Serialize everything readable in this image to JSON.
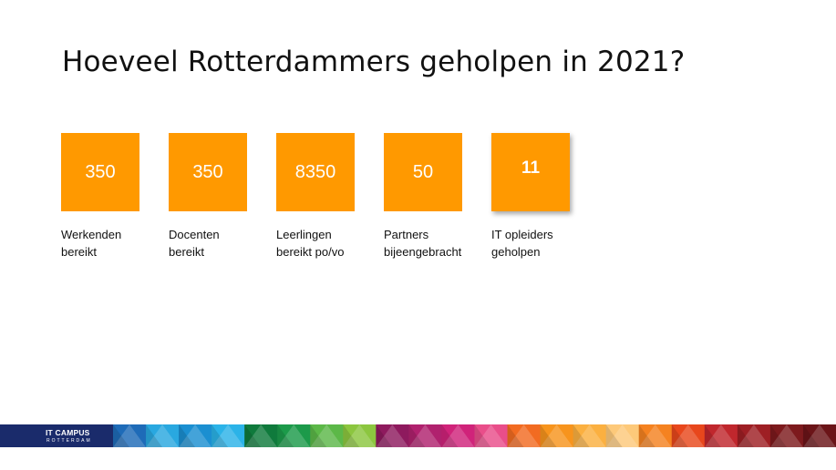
{
  "slide": {
    "title": "Hoeveel Rotterdammers geholpen in 2021?"
  },
  "stats": [
    {
      "value": "350",
      "label": "Werkenden\nbereikt"
    },
    {
      "value": "350",
      "label": "Docenten\nbereikt"
    },
    {
      "value": "8350",
      "label": "Leerlingen\nbereikt po/vo"
    },
    {
      "value": "50",
      "label": "Partners\nbijeengebracht"
    },
    {
      "value": "11",
      "label": "IT opleiders\ngeholpen"
    }
  ],
  "footer": {
    "logo_main": "IT CAMPUS",
    "logo_sub": "ROTTERDAM",
    "band_colors": [
      "#1e6bb8",
      "#29a8e0",
      "#1b8fd1",
      "#2bb3e8",
      "#0f7a3c",
      "#1c9a4a",
      "#5cb848",
      "#8cc63f",
      "#8e1a5e",
      "#b0216e",
      "#d0237a",
      "#e94e8a",
      "#f26b21",
      "#f7941d",
      "#fbb040",
      "#fdc97a",
      "#f58220",
      "#e8471c",
      "#c0272d",
      "#9e1f24",
      "#7d1a1d",
      "#6b1418"
    ]
  },
  "colors": {
    "box": "#ff9900",
    "title": "#111111"
  }
}
